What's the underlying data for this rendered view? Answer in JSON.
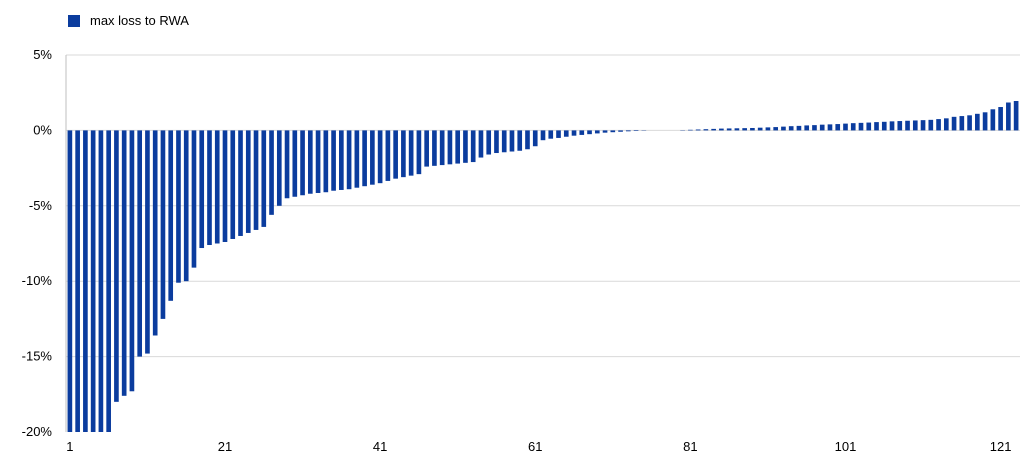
{
  "chart_data": {
    "type": "bar",
    "title": "",
    "xlabel": "",
    "ylabel": "",
    "series": [
      {
        "name": "max loss to RWA",
        "color": "#0b3c9e",
        "values": [
          -20.0,
          -20.0,
          -20.0,
          -20.0,
          -20.0,
          -20.0,
          -18.0,
          -17.6,
          -17.3,
          -15.0,
          -14.8,
          -13.6,
          -12.5,
          -11.3,
          -10.1,
          -10.0,
          -9.1,
          -7.8,
          -7.6,
          -7.5,
          -7.4,
          -7.2,
          -7.0,
          -6.8,
          -6.6,
          -6.4,
          -5.6,
          -5.0,
          -4.5,
          -4.4,
          -4.3,
          -4.2,
          -4.15,
          -4.1,
          -4.0,
          -3.95,
          -3.9,
          -3.8,
          -3.7,
          -3.6,
          -3.5,
          -3.35,
          -3.2,
          -3.1,
          -3.0,
          -2.9,
          -2.4,
          -2.35,
          -2.3,
          -2.25,
          -2.2,
          -2.15,
          -2.1,
          -1.8,
          -1.6,
          -1.5,
          -1.45,
          -1.4,
          -1.35,
          -1.25,
          -1.05,
          -0.65,
          -0.55,
          -0.5,
          -0.42,
          -0.35,
          -0.3,
          -0.25,
          -0.2,
          -0.15,
          -0.12,
          -0.09,
          -0.06,
          -0.04,
          -0.02,
          0.0,
          0.0,
          0.0,
          0.0,
          0.02,
          0.04,
          0.06,
          0.08,
          0.1,
          0.12,
          0.13,
          0.14,
          0.15,
          0.16,
          0.18,
          0.2,
          0.22,
          0.25,
          0.28,
          0.3,
          0.33,
          0.35,
          0.38,
          0.4,
          0.42,
          0.45,
          0.48,
          0.5,
          0.52,
          0.55,
          0.57,
          0.6,
          0.62,
          0.64,
          0.66,
          0.68,
          0.7,
          0.75,
          0.8,
          0.9,
          0.95,
          1.0,
          1.1,
          1.2,
          1.4,
          1.55,
          1.85,
          1.95
        ]
      }
    ],
    "x_ticks": [
      "1",
      "21",
      "41",
      "61",
      "81",
      "101",
      "121"
    ],
    "y_ticks": [
      "5%",
      "0%",
      "-5%",
      "-10%",
      "-15%",
      "-20%"
    ],
    "y_tick_values": [
      5,
      0,
      -5,
      -10,
      -15,
      -20
    ],
    "ylim": [
      -20,
      5
    ],
    "grid": true,
    "legend_position": "top-left"
  }
}
